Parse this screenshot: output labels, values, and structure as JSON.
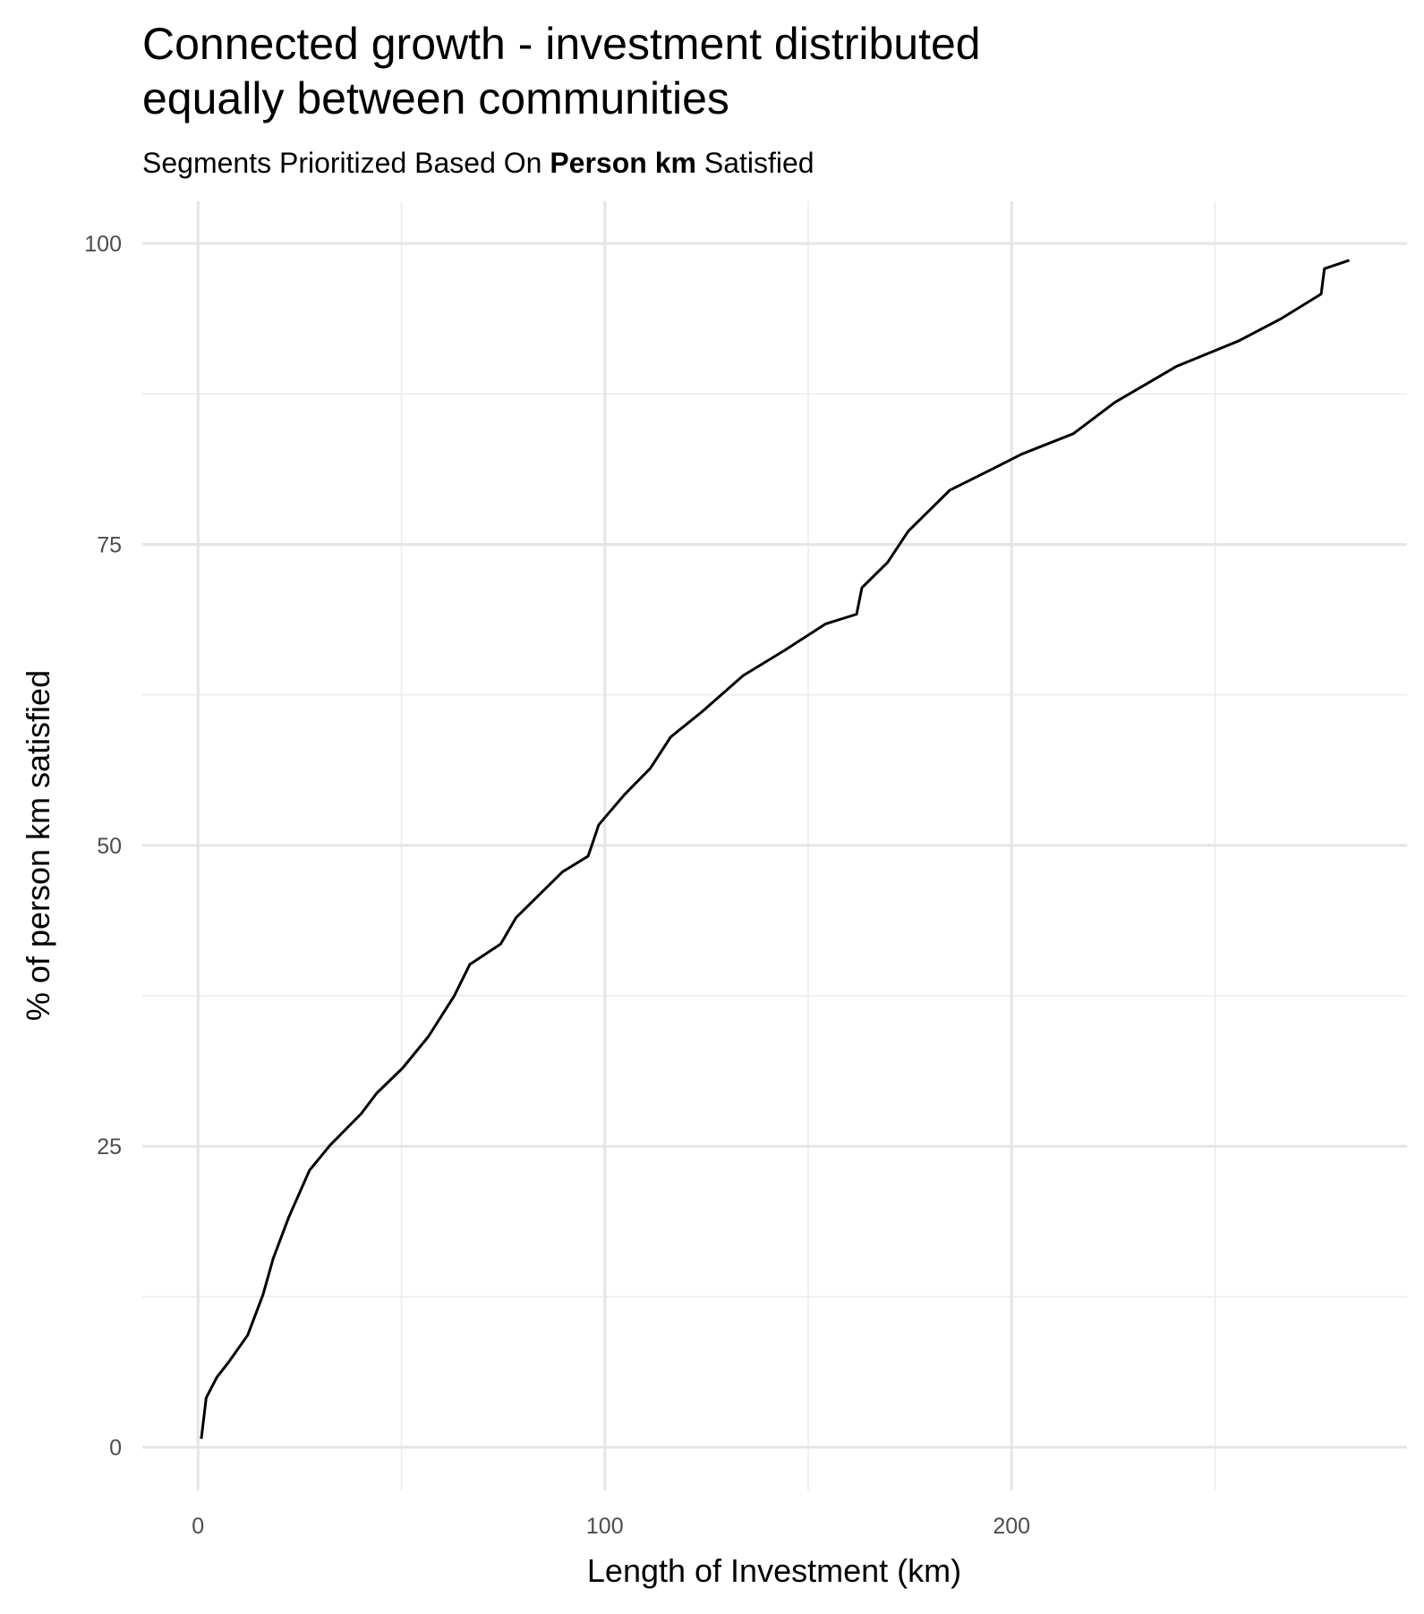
{
  "chart_data": {
    "type": "line",
    "title": [
      "Connected growth - investment distributed",
      "equally between communities"
    ],
    "subtitle": [
      {
        "text": "Segments Prioritized Based On ",
        "bold": false
      },
      {
        "text": "Person km",
        "bold": true
      },
      {
        "text": " Satisfied",
        "bold": false
      }
    ],
    "x_label": "Length of Investment (km)",
    "y_label": "% of person km satisfied",
    "x": [
      0.8,
      2,
      4.6,
      7.6,
      12.2,
      16,
      18.5,
      22.3,
      27.4,
      32.5,
      40.1,
      43.9,
      50.3,
      56.6,
      63,
      66.8,
      74.4,
      78.2,
      84.5,
      89.6,
      95.9,
      98.5,
      104.8,
      111.2,
      116.2,
      123.9,
      134,
      144.2,
      154.3,
      161.9,
      163.2,
      169.5,
      174.6,
      184.8,
      194.9,
      202.5,
      215.2,
      225.4,
      240.6,
      255.8,
      266,
      276.1,
      276.9,
      283
    ],
    "series": [
      {
        "color": "#000000",
        "values": [
          0.7,
          4.1,
          5.8,
          7.1,
          9.3,
          12.7,
          15.7,
          19.1,
          23,
          25.1,
          27.7,
          29.4,
          31.5,
          34.1,
          37.5,
          40.1,
          41.8,
          44,
          46.1,
          47.8,
          49.1,
          51.7,
          54.2,
          56.4,
          59,
          61.1,
          64.1,
          66.2,
          68.4,
          69.2,
          71.4,
          73.5,
          76.1,
          79.5,
          81.2,
          82.5,
          84.2,
          86.8,
          89.8,
          91.9,
          93.7,
          95.8,
          97.9,
          98.6
        ]
      }
    ],
    "xlim": [
      -13.7,
      297.2
    ],
    "ylim": [
      -3.6,
      103.5
    ],
    "xticks": [
      0,
      100,
      200
    ],
    "yticks": [
      0,
      25,
      50,
      75,
      100
    ],
    "xminor": [
      50,
      150,
      250
    ],
    "yminor": [
      12.5,
      37.5,
      62.5,
      87.5
    ],
    "grid": true
  }
}
